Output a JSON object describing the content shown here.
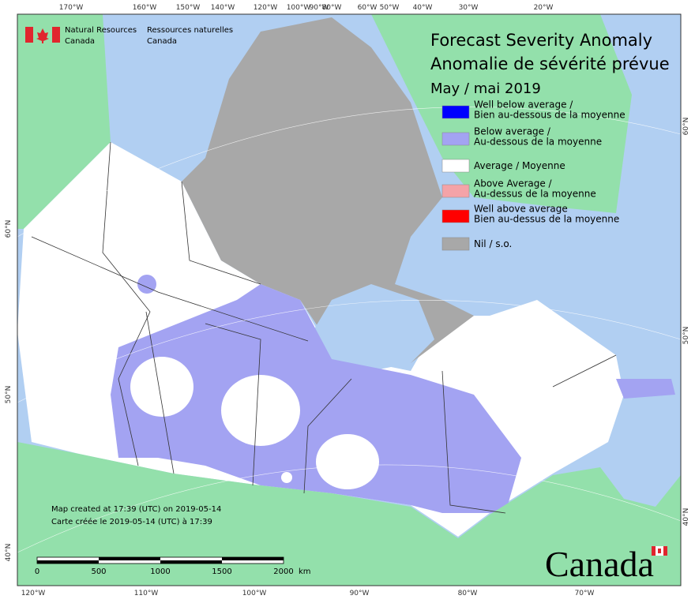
{
  "header": {
    "org_en": [
      "Natural Resources",
      "Canada"
    ],
    "org_fr": [
      "Ressources naturelles",
      "Canada"
    ]
  },
  "title": [
    "Forecast Severity Anomaly",
    "Anomalie de sévérité prévue",
    "May / mai 2019"
  ],
  "legend": [
    {
      "lines": [
        "Well below average /",
        "Bien au-dessous de la moyenne"
      ],
      "color": "#0000ff"
    },
    {
      "lines": [
        "Below average /",
        "Au-dessous de la moyenne"
      ],
      "color": "#a3a3f2"
    },
    {
      "lines": [
        "Average / Moyenne"
      ],
      "color": "#ffffff"
    },
    {
      "lines": [
        "Above Average /",
        "Au-dessus de la moyenne"
      ],
      "color": "#f4a3a8"
    },
    {
      "lines": [
        "Well above average",
        "Bien au-dessus de la moyenne"
      ],
      "color": "#ff0000"
    },
    {
      "lines": [
        "Nil / s.o."
      ],
      "color": "#a8a8a8"
    }
  ],
  "graticule": {
    "top": [
      "170°W",
      "160°W",
      "150°W",
      "140°W",
      "120°W",
      "100°W",
      "90°W",
      "80°W",
      "60°W",
      "50°W",
      "40°W",
      "30°W",
      "20°W"
    ],
    "bottom": [
      "120°W",
      "110°W",
      "100°W",
      "90°W",
      "80°W",
      "70°W"
    ],
    "left": [
      "60°N",
      "50°N",
      "40°N"
    ],
    "right": [
      "60°N",
      "50°N",
      "40°N"
    ]
  },
  "credits": [
    "Map created at 17:39 (UTC) on 2019-05-14",
    "Carte créée le 2019-05-14 (UTC) à 17:39"
  ],
  "scale": {
    "labels": [
      "0",
      "500",
      "1000",
      "1500",
      "2000"
    ],
    "unit": "km"
  },
  "wordmark": "Canada"
}
